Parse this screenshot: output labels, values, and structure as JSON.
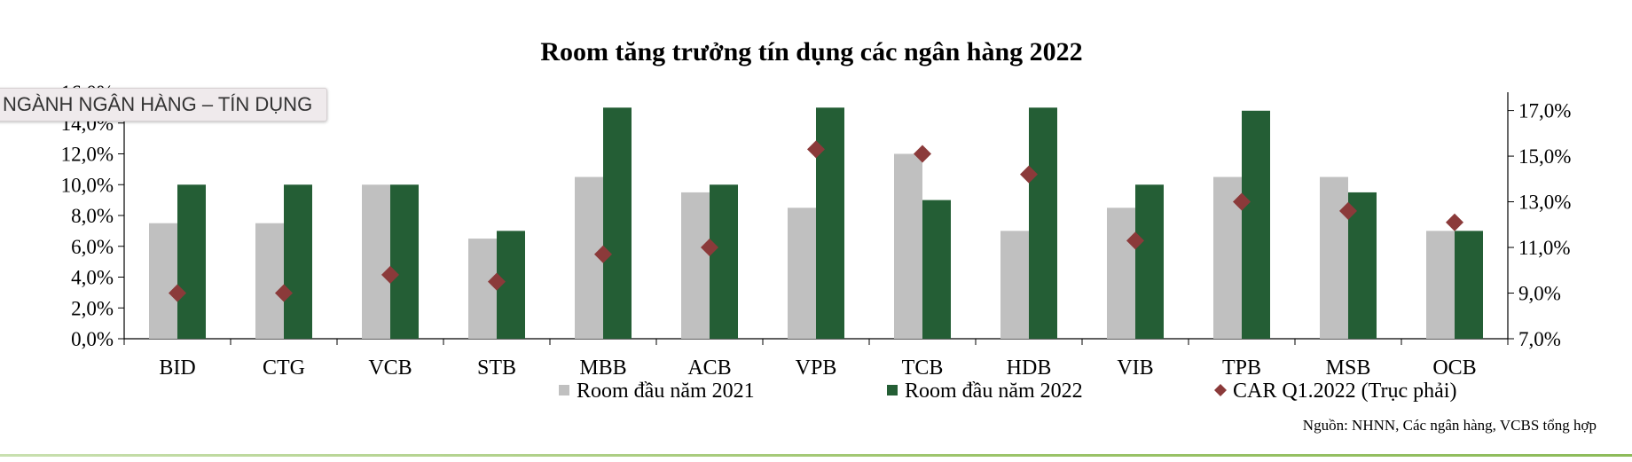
{
  "chart_data": {
    "type": "bar",
    "title": "Room tăng trưởng tín dụng các ngân hàng 2022",
    "categories": [
      "BID",
      "CTG",
      "VCB",
      "STB",
      "MBB",
      "ACB",
      "VPB",
      "TCB",
      "HDB",
      "VIB",
      "TPB",
      "MSB",
      "OCB"
    ],
    "series": [
      {
        "name": "Room đầu năm 2021",
        "type": "bar",
        "axis": "left",
        "color": "#c0c0c0",
        "values": [
          7.5,
          7.5,
          10.0,
          6.5,
          10.5,
          9.5,
          8.5,
          12.0,
          7.0,
          8.5,
          10.5,
          10.5,
          7.0
        ]
      },
      {
        "name": "Room đầu năm 2022",
        "type": "bar",
        "axis": "left",
        "color": "#245e35",
        "values": [
          10.0,
          10.0,
          10.0,
          7.0,
          15.0,
          10.0,
          15.0,
          9.0,
          15.0,
          10.0,
          14.8,
          9.5,
          7.0
        ]
      },
      {
        "name": "CAR Q1.2022 (Trục phải)",
        "type": "scatter",
        "axis": "right",
        "color": "#8b3a3a",
        "marker": "diamond",
        "values": [
          9.0,
          9.0,
          9.8,
          9.5,
          10.7,
          11.0,
          15.3,
          15.1,
          14.2,
          11.3,
          13.0,
          12.6,
          12.1
        ]
      }
    ],
    "left_axis": {
      "ylim": [
        0,
        16
      ],
      "ticks": [
        "0,0%",
        "2,0%",
        "4,0%",
        "6,0%",
        "8,0%",
        "10,0%",
        "12,0%",
        "14,0%",
        "16,0%"
      ]
    },
    "right_axis": {
      "ylim": [
        7,
        17.8
      ],
      "ticks": [
        "7,0%",
        "9,0%",
        "11,0%",
        "13,0%",
        "15,0%",
        "17,0%"
      ]
    },
    "legend_position": "bottom",
    "grid": false
  },
  "overlay": {
    "tab_text": "NGÀNH NGÂN HÀNG – TÍN DỤNG"
  },
  "source": "Nguồn: NHNN, Các ngân hàng, VCBS tổng hợp"
}
